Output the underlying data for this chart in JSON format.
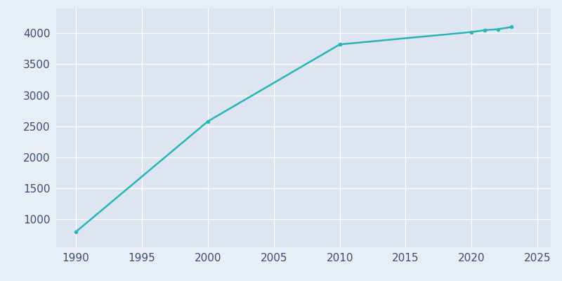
{
  "years": [
    1990,
    2000,
    2010,
    2020,
    2021,
    2022,
    2023
  ],
  "population": [
    800,
    2580,
    3820,
    4020,
    4050,
    4065,
    4100
  ],
  "line_color": "#2ab5b5",
  "marker_color": "#2ab5b5",
  "fig_bg_color": "#e8eef5",
  "plot_bg_color": "#dce5f0",
  "grid_color": "#ffffff",
  "xlim": [
    1988.5,
    2026
  ],
  "ylim": [
    550,
    4400
  ],
  "xticks": [
    1990,
    1995,
    2000,
    2005,
    2010,
    2015,
    2020,
    2025
  ],
  "yticks": [
    1000,
    1500,
    2000,
    2500,
    3000,
    3500,
    4000
  ],
  "tick_color": "#3a4d72",
  "tick_fontsize": 11
}
